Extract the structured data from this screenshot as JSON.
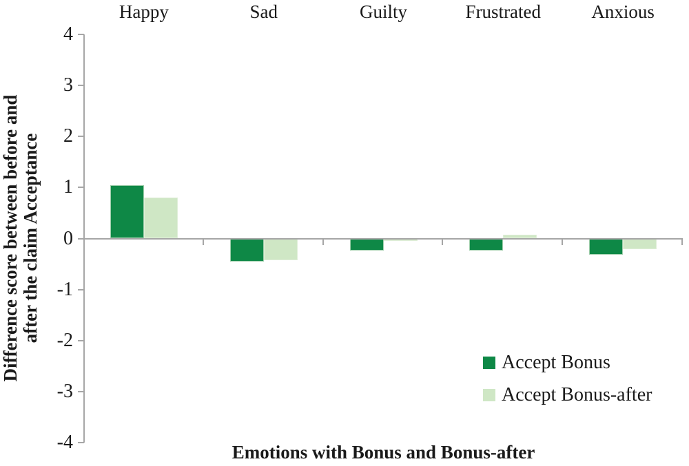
{
  "chart_data": {
    "type": "bar",
    "title": "",
    "categories": [
      "Happy",
      "Sad",
      "Guilty",
      "Frustrated",
      "Anxious"
    ],
    "series": [
      {
        "name": "Accept Bonus",
        "color": "#0E8846",
        "border_color": "#9fceab",
        "values": [
          1.05,
          -0.45,
          -0.23,
          -0.23,
          -0.32
        ]
      },
      {
        "name": "Accept Bonus-after",
        "color": "#CFE7C5",
        "border_color": "#dfeed8",
        "values": [
          0.8,
          -0.43,
          -0.05,
          0.07,
          -0.21
        ]
      }
    ],
    "xlabel": "Emotions with Bonus and Bonus-after",
    "ylabel_line1": "Difference score between before and",
    "ylabel_line2": "after the claim Acceptance",
    "ylim": [
      -4,
      4
    ],
    "yticks": [
      4,
      3,
      2,
      1,
      0,
      -1,
      -2,
      -3,
      -4
    ],
    "grid": false,
    "legend_position": "inside-bottom-right",
    "axis_color": "#a6a6a6",
    "text_color": "#1a1a1a",
    "background_color": "#ffffff"
  }
}
